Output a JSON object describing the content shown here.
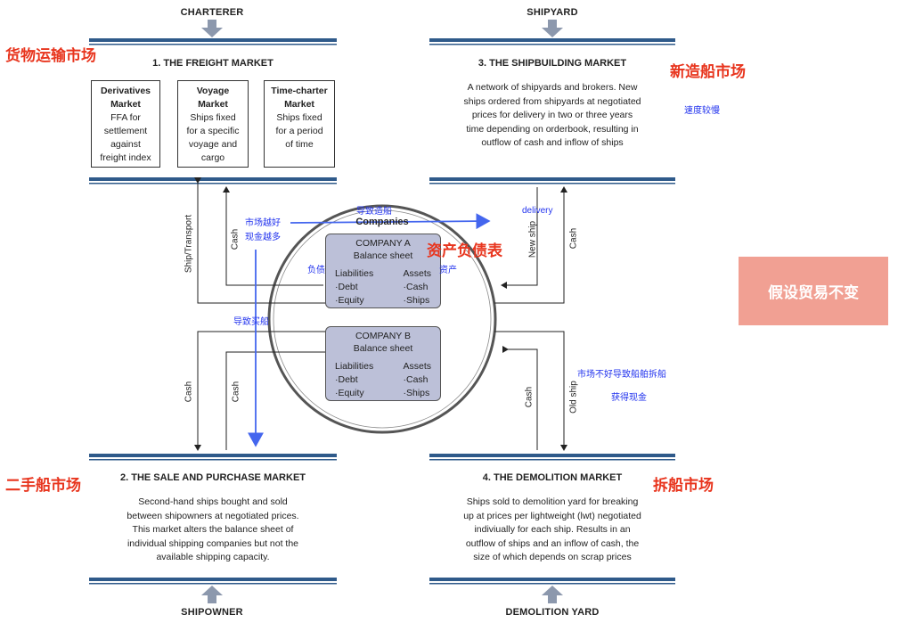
{
  "endpoints": {
    "charterer": "CHARTERER",
    "shipyard": "SHIPYARD",
    "shipowner": "SHIPOWNER",
    "demolition_yard": "DEMOLITION YARD"
  },
  "freight_market": {
    "title": "1. THE FREIGHT MARKET",
    "boxes": [
      {
        "title_line1": "Derivatives",
        "title_line2": "Market",
        "lines": [
          "FFA for",
          "settlement",
          "against",
          "freight index"
        ]
      },
      {
        "title_line1": "Voyage",
        "title_line2": "Market",
        "lines": [
          "Ships fixed",
          "for a specific",
          "voyage and",
          "cargo"
        ]
      },
      {
        "title_line1": "Time-charter",
        "title_line2": "Market",
        "lines": [
          "Ships fixed",
          "for a period",
          "of time"
        ]
      }
    ]
  },
  "shipbuilding_market": {
    "title": "3. THE SHIPBUILDING MARKET",
    "lines": [
      "A network of shipyards and brokers. New",
      "ships ordered from shipyards at negotiated",
      "prices for delivery in two or three years",
      "time depending on orderbook, resulting in",
      "outflow of cash and inflow of ships"
    ]
  },
  "sale_purchase_market": {
    "title": "2. THE SALE AND PURCHASE MARKET",
    "lines": [
      "Second-hand ships bought and sold",
      "between shipowners at negotiated prices.",
      "This market alters the balance sheet of",
      "individual shipping companies but not the",
      "available shipping capacity."
    ]
  },
  "demolition_market": {
    "title": "4. THE DEMOLITION MARKET",
    "lines": [
      "Ships sold to demolition yard for breaking",
      "up at prices per lightweight (lwt) negotiated",
      "indiviually for each ship. Results in an",
      "outflow of ships and an inflow of cash, the",
      "size of which depends on scrap prices"
    ]
  },
  "flow_labels": {
    "ship_transport": "Ship/Transport",
    "cash_freight": "Cash",
    "new_ship": "New ship",
    "cash_shipbuilding": "Cash",
    "cash_sp_left": "Cash",
    "cash_sp_right": "Cash",
    "cash_demolition": "Cash",
    "old_ship": "Old ship"
  },
  "companies": {
    "header": "Companies",
    "a": {
      "name": "COMPANY A",
      "sheet": "Balance sheet",
      "left": [
        "Liabilities",
        "·Debt",
        "·Equity"
      ],
      "right": [
        "Assets",
        "·Cash",
        "·Ships"
      ]
    },
    "b": {
      "name": "COMPANY B",
      "sheet": "Balance sheet",
      "left": [
        "Liabilities",
        "·Debt",
        "·Equity"
      ],
      "right": [
        "Assets",
        "·Cash",
        "·Ships"
      ]
    }
  },
  "annotations_red": {
    "freight": "货物运输市场",
    "shipbuilding": "新造船市场",
    "sale_purchase": "二手船市场",
    "demolition": "拆船市场",
    "balance_sheet": "资产负债表"
  },
  "annotations_blue": {
    "slow": "速度较慢",
    "good_market": "市场越好",
    "more_cash": "现金越多",
    "leads_newbuild": "导致造船",
    "delivery": "delivery",
    "liabilities": "负债",
    "assets": "资产",
    "leads_buy": "导致买船",
    "bad_market": "市场不好导致船舶拆船",
    "get_cash": "获得现金"
  },
  "note_box": "假设贸易不变",
  "colors": {
    "bar": "#2f5a8a",
    "arrow_gray": "#8c98ad",
    "blue": "#3355ee",
    "red": "#e8351e",
    "pink": "#f1a093",
    "company_fill": "#bcc0d8"
  }
}
